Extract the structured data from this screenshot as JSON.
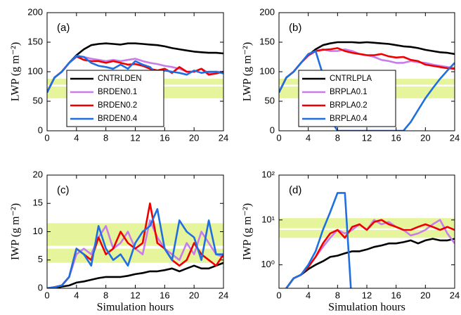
{
  "chart_data": [
    {
      "type": "line",
      "panel_label": "(a)",
      "y_label": "LWP (g m⁻²)",
      "legend": "lower left",
      "xlim": [
        0,
        24
      ],
      "xticks": [
        0,
        4,
        8,
        12,
        16,
        20,
        24
      ],
      "ylim": [
        0,
        200
      ],
      "yticks": [
        0,
        50,
        100,
        150,
        200
      ],
      "bands": [
        [
          55,
          75
        ],
        [
          78,
          88
        ]
      ],
      "band_color": "#e6f59c",
      "x": [
        0,
        1,
        2,
        3,
        4,
        5,
        6,
        7,
        8,
        9,
        10,
        11,
        12,
        13,
        14,
        15,
        16,
        17,
        18,
        19,
        20,
        21,
        22,
        23,
        24
      ],
      "series": [
        {
          "name": "CNTRLDEN",
          "color": "#000000",
          "values": [
            65,
            90,
            100,
            115,
            128,
            138,
            145,
            147,
            148,
            147,
            146,
            148,
            148,
            147,
            146,
            145,
            143,
            140,
            138,
            136,
            134,
            133,
            132,
            132,
            131
          ]
        },
        {
          "name": "BRDEN0.1",
          "color": "#c77cea",
          "values": [
            65,
            90,
            100,
            115,
            125,
            125,
            122,
            120,
            118,
            120,
            118,
            120,
            122,
            118,
            115,
            113,
            110,
            108,
            105,
            100,
            100,
            105,
            98,
            100,
            100
          ]
        },
        {
          "name": "BRDEN0.2",
          "color": "#ee0000",
          "values": [
            65,
            90,
            100,
            115,
            126,
            120,
            118,
            118,
            115,
            118,
            115,
            112,
            113,
            110,
            105,
            102,
            105,
            98,
            108,
            100,
            100,
            105,
            95,
            97,
            100
          ]
        },
        {
          "name": "BRDEN0.4",
          "color": "#1f6fe0",
          "values": [
            65,
            90,
            100,
            115,
            127,
            125,
            115,
            110,
            108,
            105,
            112,
            105,
            118,
            112,
            108,
            95,
            102,
            100,
            98,
            95,
            102,
            98,
            100,
            100,
            97
          ]
        }
      ]
    },
    {
      "type": "line",
      "panel_label": "(b)",
      "y_label": "LWP (g m⁻²)",
      "legend": "lower left",
      "xlim": [
        0,
        24
      ],
      "xticks": [
        0,
        4,
        8,
        12,
        16,
        20,
        24
      ],
      "ylim": [
        0,
        200
      ],
      "yticks": [
        0,
        50,
        100,
        150,
        200
      ],
      "bands": [
        [
          55,
          75
        ],
        [
          78,
          88
        ]
      ],
      "band_color": "#e6f59c",
      "x": [
        0,
        1,
        2,
        3,
        4,
        5,
        6,
        7,
        8,
        9,
        10,
        11,
        12,
        13,
        14,
        15,
        16,
        17,
        18,
        19,
        20,
        21,
        22,
        23,
        24
      ],
      "series": [
        {
          "name": "CNTRLPLA",
          "color": "#000000",
          "values": [
            65,
            90,
            100,
            115,
            128,
            138,
            145,
            148,
            150,
            150,
            150,
            149,
            150,
            149,
            148,
            147,
            145,
            143,
            142,
            140,
            137,
            135,
            133,
            132,
            130
          ]
        },
        {
          "name": "BRPLA0.1",
          "color": "#c77cea",
          "values": [
            65,
            90,
            100,
            115,
            127,
            135,
            138,
            135,
            135,
            138,
            135,
            130,
            128,
            125,
            120,
            118,
            115,
            115,
            118,
            116,
            115,
            112,
            110,
            108,
            106
          ]
        },
        {
          "name": "BRPLA0.2",
          "color": "#ee0000",
          "values": [
            65,
            90,
            100,
            115,
            128,
            135,
            137,
            138,
            140,
            135,
            132,
            130,
            128,
            128,
            130,
            126,
            124,
            125,
            120,
            118,
            112,
            110,
            108,
            106,
            105
          ]
        },
        {
          "name": "BRPLA0.4",
          "color": "#1f6fe0",
          "values": [
            65,
            90,
            100,
            115,
            130,
            135,
            95,
            20,
            0,
            0,
            0,
            0,
            0,
            0,
            0,
            0,
            0,
            0,
            15,
            35,
            55,
            72,
            88,
            102,
            115
          ]
        }
      ]
    },
    {
      "type": "line",
      "panel_label": "(c)",
      "y_label": "IWP (g m⁻²)",
      "x_label": "Simulation hours",
      "xlim": [
        0,
        24
      ],
      "xticks": [
        0,
        4,
        8,
        12,
        16,
        20,
        24
      ],
      "ylim": [
        0,
        20
      ],
      "yticks": [
        0,
        5,
        10,
        15,
        20
      ],
      "bands": [
        [
          4.5,
          7
        ],
        [
          7.5,
          11.5
        ]
      ],
      "band_color": "#e6f59c",
      "x": [
        0,
        1,
        2,
        3,
        4,
        5,
        6,
        7,
        8,
        9,
        10,
        11,
        12,
        13,
        14,
        15,
        16,
        17,
        18,
        19,
        20,
        21,
        22,
        23,
        24
      ],
      "series": [
        {
          "name": "CNTRLDEN",
          "color": "#000000",
          "values": [
            0,
            0,
            0.3,
            0.5,
            1,
            1.2,
            1.5,
            1.8,
            2,
            2,
            2,
            2.2,
            2.5,
            2.7,
            3,
            3,
            3.2,
            3.5,
            3,
            3.5,
            4,
            3.5,
            3.5,
            4,
            4.5
          ]
        },
        {
          "name": "BRDEN0.1",
          "color": "#c77cea",
          "values": [
            0,
            0.2,
            0.5,
            2,
            6,
            7,
            6,
            9,
            11,
            7,
            8,
            10,
            7,
            6,
            12,
            9,
            7,
            6,
            5,
            8,
            6,
            10,
            8,
            6,
            5.5
          ]
        },
        {
          "name": "BRDEN0.2",
          "color": "#ee0000",
          "values": [
            0,
            0.2,
            0.5,
            2,
            7,
            6,
            5,
            9,
            6,
            7,
            10,
            8,
            7,
            8,
            15,
            8,
            7,
            5,
            4,
            5,
            8,
            6,
            5,
            4,
            6
          ]
        },
        {
          "name": "BRDEN0.4",
          "color": "#1f6fe0",
          "values": [
            0,
            0.2,
            0.5,
            2,
            7,
            6,
            4,
            11,
            7,
            5,
            6,
            4,
            8,
            10,
            11,
            14,
            7,
            5,
            12,
            10,
            9,
            5,
            12,
            6,
            6
          ]
        }
      ]
    },
    {
      "type": "line",
      "panel_label": "(d)",
      "y_label": "IWP (g m⁻²)",
      "x_label": "Simulation hours",
      "log_y": true,
      "xlim": [
        0,
        24
      ],
      "xticks": [
        0,
        4,
        8,
        12,
        16,
        20,
        24
      ],
      "ylim": [
        0.3,
        100
      ],
      "yticks": [
        {
          "value": 1,
          "label": "10⁰"
        },
        {
          "value": 10,
          "label": "10¹"
        },
        {
          "value": 100,
          "label": "10²"
        }
      ],
      "bands": [
        [
          4,
          6
        ],
        [
          6.5,
          11
        ]
      ],
      "band_color": "#e6f59c",
      "x": [
        0,
        1,
        2,
        3,
        4,
        5,
        6,
        7,
        8,
        9,
        10,
        11,
        12,
        13,
        14,
        15,
        16,
        17,
        18,
        19,
        20,
        21,
        22,
        23,
        24
      ],
      "series": [
        {
          "name": "CNTRLPLA",
          "color": "#000000",
          "values": [
            0.2,
            0.3,
            0.5,
            0.6,
            0.8,
            1,
            1.2,
            1.5,
            1.6,
            1.8,
            2,
            2,
            2.2,
            2.5,
            2.7,
            3,
            3,
            3.2,
            3.5,
            3,
            3.5,
            3.8,
            3.5,
            3.5,
            3.8
          ]
        },
        {
          "name": "BRPLA0.1",
          "color": "#c77cea",
          "values": [
            0.2,
            0.3,
            0.5,
            0.6,
            0.9,
            1.5,
            2.5,
            4,
            6,
            5,
            6,
            8,
            6,
            10,
            8,
            9,
            7,
            6,
            4.5,
            5,
            6,
            8,
            10,
            5,
            3
          ]
        },
        {
          "name": "BRPLA0.2",
          "color": "#ee0000",
          "values": [
            0.2,
            0.3,
            0.5,
            0.6,
            0.9,
            1.5,
            3,
            5,
            6,
            4,
            7,
            8,
            6,
            9,
            10,
            8,
            7,
            6,
            6,
            7,
            8,
            7,
            6,
            7,
            6
          ]
        },
        {
          "name": "BRPLA0.4",
          "color": "#1f6fe0",
          "values": [
            0.2,
            0.3,
            0.5,
            0.6,
            1,
            2,
            6,
            15,
            40,
            40,
            0.1,
            null,
            null,
            null,
            null,
            null,
            null,
            null,
            null,
            null,
            null,
            null,
            null,
            null,
            null
          ]
        }
      ]
    }
  ]
}
